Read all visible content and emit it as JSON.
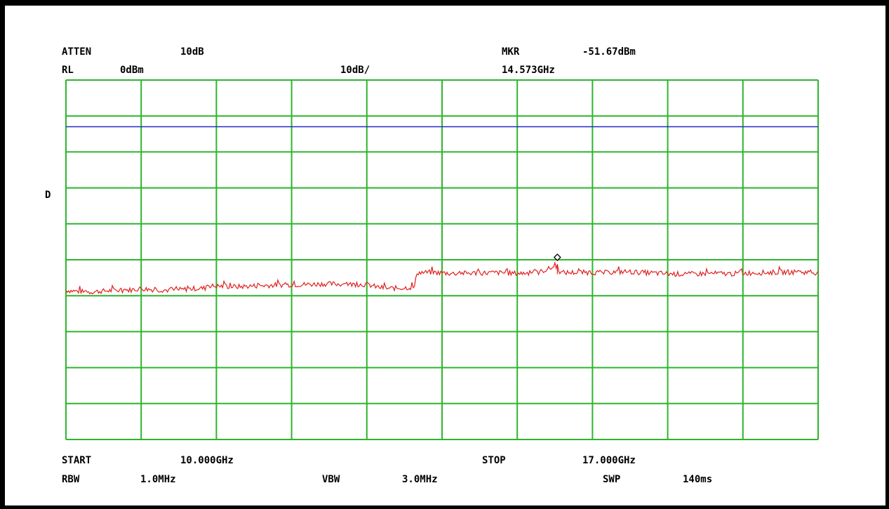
{
  "header": {
    "atten_label": "ATTEN",
    "atten_value": "10dB",
    "mkr_label": "MKR",
    "mkr_value": "-51.67dBm",
    "rl_label": "RL",
    "rl_value": "0dBm",
    "scale_value": "10dB/",
    "mkr_freq": "14.573GHz"
  },
  "side_label": "D",
  "footer": {
    "start_label": "START",
    "start_value": "10.000GHz",
    "stop_label": "STOP",
    "stop_value": "17.000GHz",
    "rbw_label": "RBW",
    "rbw_value": "1.0MHz",
    "vbw_label": "VBW",
    "vbw_value": "3.0MHz",
    "swp_label": "SWP",
    "swp_value": "140ms"
  },
  "colors": {
    "grid": "#2db52d",
    "trace": "#e02020",
    "reference_line": "#2828c8",
    "marker": "#000000",
    "background": "#ffffff",
    "frame": "#000000"
  },
  "chart_data": {
    "type": "line",
    "title": "",
    "xlabel": "",
    "ylabel": "",
    "x_unit": "GHz",
    "y_unit": "dBm",
    "xlim": [
      10.0,
      17.0
    ],
    "ylim": [
      -100,
      0
    ],
    "grid": true,
    "x_divisions": 10,
    "y_divisions": 10,
    "reference_line_dbm": -13,
    "marker": {
      "x": 14.573,
      "y": -51.67
    },
    "series": [
      {
        "points": [
          [
            10.0,
            -58.5
          ],
          [
            10.2,
            -59.0
          ],
          [
            10.4,
            -58.6
          ],
          [
            10.6,
            -58.4
          ],
          [
            10.7,
            -58.0
          ],
          [
            10.8,
            -58.3
          ],
          [
            11.0,
            -58.5
          ],
          [
            11.2,
            -58.0
          ],
          [
            11.3,
            -57.9
          ],
          [
            11.31,
            -56.8
          ],
          [
            11.35,
            -57.3
          ],
          [
            11.6,
            -57.5
          ],
          [
            11.8,
            -57.2
          ],
          [
            12.0,
            -57.0
          ],
          [
            12.2,
            -56.9
          ],
          [
            12.4,
            -56.7
          ],
          [
            12.6,
            -56.8
          ],
          [
            12.8,
            -56.9
          ],
          [
            12.9,
            -57.6
          ],
          [
            13.0,
            -58.0
          ],
          [
            13.15,
            -57.8
          ],
          [
            13.25,
            -57.6
          ],
          [
            13.26,
            -53.6
          ],
          [
            13.4,
            -53.5
          ],
          [
            13.6,
            -53.8
          ],
          [
            13.8,
            -53.7
          ],
          [
            14.0,
            -53.6
          ],
          [
            14.2,
            -53.8
          ],
          [
            14.4,
            -53.5
          ],
          [
            14.573,
            -51.67
          ],
          [
            14.6,
            -53.6
          ],
          [
            14.8,
            -53.5
          ],
          [
            15.0,
            -53.6
          ],
          [
            15.2,
            -53.3
          ],
          [
            15.4,
            -53.6
          ],
          [
            15.6,
            -53.9
          ],
          [
            15.8,
            -54.0
          ],
          [
            16.0,
            -53.8
          ],
          [
            16.2,
            -53.9
          ],
          [
            16.4,
            -53.6
          ],
          [
            16.6,
            -53.5
          ],
          [
            16.8,
            -53.4
          ],
          [
            17.0,
            -53.6
          ]
        ]
      }
    ]
  }
}
